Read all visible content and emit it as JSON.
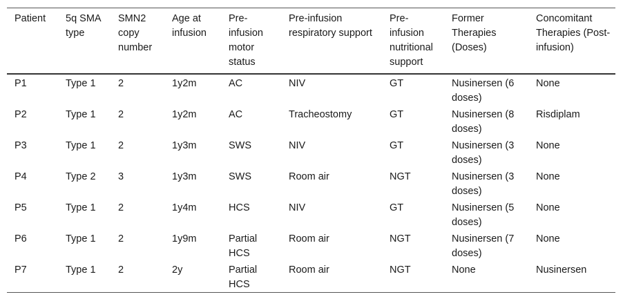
{
  "table": {
    "headers": [
      "Patient",
      "5q SMA type",
      "SMN2 copy number",
      "Age at infusion",
      "Pre-infusion motor status",
      "Pre-infusion respiratory support",
      "Pre-infusion nutritional support",
      "Former Therapies (Doses)",
      "Concomitant Therapies (Post-infusion)"
    ],
    "rows": [
      [
        "P1",
        "Type 1",
        "2",
        "1y2m",
        "AC",
        "NIV",
        "GT",
        "Nusinersen (6 doses)",
        "None"
      ],
      [
        "P2",
        "Type 1",
        "2",
        "1y2m",
        "AC",
        "Tracheostomy",
        "GT",
        "Nusinersen (8 doses)",
        "Risdiplam"
      ],
      [
        "P3",
        "Type 1",
        "2",
        "1y3m",
        "SWS",
        "NIV",
        "GT",
        "Nusinersen (3 doses)",
        "None"
      ],
      [
        "P4",
        "Type 2",
        "3",
        "1y3m",
        "SWS",
        "Room air",
        "NGT",
        "Nusinersen (3 doses)",
        "None"
      ],
      [
        "P5",
        "Type 1",
        "2",
        "1y4m",
        "HCS",
        "NIV",
        "GT",
        "Nusinersen (5 doses)",
        "None"
      ],
      [
        "P6",
        "Type 1",
        "2",
        "1y9m",
        "Partial HCS",
        "Room air",
        "NGT",
        "Nusinersen (7 doses)",
        "None"
      ],
      [
        "P7",
        "Type 1",
        "2",
        "2y",
        "Partial HCS",
        "Room air",
        "NGT",
        "None",
        "Nusinersen"
      ]
    ]
  }
}
